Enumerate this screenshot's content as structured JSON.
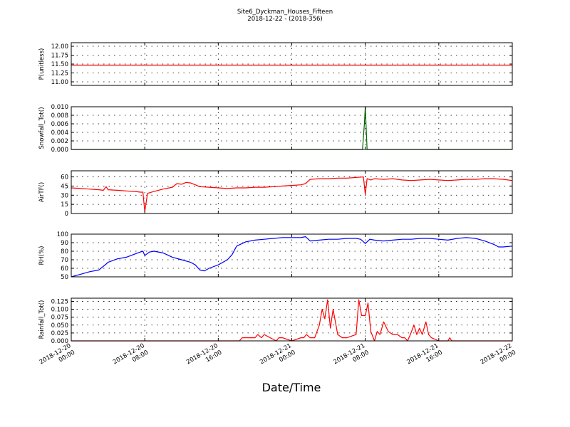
{
  "figure": {
    "title_line1": "Site6_Dyckman_Houses_Fifteen",
    "title_line2": "2018-12-22 - (2018-356)",
    "xlabel": "Date/Time"
  },
  "chart_data": [
    {
      "type": "line",
      "ylabel": "P(unitless)",
      "ylim": [
        10.9,
        12.1
      ],
      "yticks": [
        "11.00",
        "11.25",
        "11.50",
        "11.75",
        "12.00"
      ],
      "ytick_values": [
        11.0,
        11.25,
        11.5,
        11.75,
        12.0
      ],
      "xlim": [
        0,
        48
      ],
      "grid": true,
      "series": [
        {
          "color": "#ff0000",
          "x": [
            0,
            48
          ],
          "y": [
            11.47,
            11.47
          ]
        }
      ]
    },
    {
      "type": "line",
      "ylabel": "Snowfall_Tot()",
      "ylim": [
        0,
        0.01
      ],
      "yticks": [
        "0.000",
        "0.002",
        "0.004",
        "0.006",
        "0.008",
        "0.010"
      ],
      "ytick_values": [
        0,
        0.002,
        0.004,
        0.006,
        0.008,
        0.01
      ],
      "xlim": [
        0,
        48
      ],
      "grid": true,
      "series": [
        {
          "color": "#006400",
          "x": [
            0,
            31.7,
            31.9,
            32.0,
            32.2,
            48
          ],
          "y": [
            0,
            0,
            0.006,
            0.01,
            0,
            0
          ]
        }
      ]
    },
    {
      "type": "line",
      "ylabel": "AirTF()",
      "ylim": [
        0,
        70
      ],
      "yticks": [
        "0",
        "15",
        "30",
        "45",
        "60"
      ],
      "ytick_values": [
        0,
        15,
        30,
        45,
        60
      ],
      "xlim": [
        0,
        48
      ],
      "grid": true,
      "series": [
        {
          "color": "#ff0000",
          "x": [
            0,
            1,
            2,
            3,
            3.5,
            3.8,
            4,
            5,
            6,
            7,
            7.5,
            7.8,
            8,
            8.3,
            9,
            10,
            11,
            11.5,
            12,
            12.5,
            13,
            13.5,
            14,
            15,
            16,
            17,
            18,
            19,
            20,
            21,
            22,
            23,
            24,
            25,
            25.5,
            26,
            27,
            28,
            29,
            30,
            31,
            31.8,
            32,
            32.2,
            32.6,
            33,
            34,
            35,
            36,
            37,
            38,
            39,
            40,
            41,
            42,
            43,
            44,
            45,
            46,
            47,
            48
          ],
          "y": [
            42,
            41,
            40,
            39,
            38,
            44,
            39,
            38,
            37,
            36,
            35,
            35,
            3,
            33,
            36,
            40,
            43,
            49,
            48,
            51,
            50,
            47,
            44,
            43,
            42,
            41,
            42,
            42,
            43,
            43,
            44,
            45,
            46,
            47,
            49,
            56,
            57,
            57,
            58,
            58,
            59,
            60,
            31,
            57,
            55,
            57,
            56,
            57,
            55,
            54,
            55,
            56,
            55,
            54,
            55,
            56,
            56,
            57,
            57,
            56,
            54
          ]
        }
      ]
    },
    {
      "type": "line",
      "ylabel": "RH(%)",
      "ylim": [
        50,
        100
      ],
      "yticks": [
        "50",
        "60",
        "70",
        "80",
        "90",
        "100"
      ],
      "ytick_values": [
        50,
        60,
        70,
        80,
        90,
        100
      ],
      "xlim": [
        0,
        48
      ],
      "grid": true,
      "series": [
        {
          "color": "#0000ff",
          "x": [
            0,
            1,
            2,
            3,
            3.8,
            4,
            5,
            6,
            7,
            7.5,
            7.8,
            8,
            8.5,
            9,
            10,
            11,
            12,
            13,
            13.5,
            14,
            14.5,
            15,
            16,
            17,
            17.5,
            18,
            19,
            20,
            21,
            22,
            23,
            24,
            25,
            25.5,
            26,
            27,
            28,
            29,
            30,
            31,
            31.5,
            32,
            32.5,
            33,
            34,
            35,
            36,
            37,
            38,
            39,
            40,
            41,
            42,
            43,
            44,
            45,
            46,
            46.5,
            47,
            48
          ],
          "y": [
            50,
            53,
            56,
            58,
            65,
            67,
            71,
            73,
            77,
            79,
            80,
            75,
            79,
            80,
            78,
            73,
            70,
            67,
            64,
            58,
            57,
            60,
            64,
            70,
            76,
            86,
            91,
            93,
            94,
            95,
            96,
            96,
            96,
            97,
            92,
            93,
            94,
            94,
            95,
            95,
            94,
            89,
            94,
            93,
            92,
            93,
            94,
            94,
            95,
            95,
            94,
            93,
            95,
            96,
            95,
            92,
            88,
            85,
            85,
            86
          ]
        }
      ]
    },
    {
      "type": "line",
      "ylabel": "Rainfall_Tot()",
      "ylim": [
        0,
        0.135
      ],
      "yticks": [
        "0.000",
        "0.025",
        "0.050",
        "0.075",
        "0.100",
        "0.125"
      ],
      "ytick_values": [
        0,
        0.025,
        0.05,
        0.075,
        0.1,
        0.125
      ],
      "xlim": [
        0,
        48
      ],
      "grid": true,
      "series": [
        {
          "color": "#ff0000",
          "x": [
            0,
            18.3,
            18.6,
            19,
            20,
            20.3,
            20.7,
            21,
            22.3,
            22.6,
            22.8,
            23,
            24,
            25,
            25.3,
            25.6,
            26,
            26.5,
            27,
            27.3,
            27.6,
            27.9,
            28.2,
            28.5,
            29,
            29.5,
            30,
            31,
            31.3,
            31.6,
            32,
            32.3,
            32.6,
            33,
            33.3,
            33.6,
            34,
            34.5,
            35,
            35.5,
            36,
            36.3,
            36.6,
            36.9,
            37.3,
            37.6,
            37.9,
            38.2,
            38.6,
            38.9,
            39.2,
            40,
            41,
            41.2,
            41.4,
            41.6,
            48
          ],
          "y": [
            0,
            0,
            0.01,
            0.01,
            0.01,
            0.02,
            0.01,
            0.02,
            0.0,
            0.01,
            0.01,
            0.01,
            0.0,
            0.01,
            0.01,
            0.02,
            0.01,
            0.01,
            0.05,
            0.1,
            0.07,
            0.13,
            0.04,
            0.1,
            0.02,
            0.01,
            0.01,
            0.02,
            0.13,
            0.08,
            0.08,
            0.12,
            0.03,
            0.0,
            0.03,
            0.02,
            0.06,
            0.03,
            0.02,
            0.02,
            0.01,
            0.01,
            0.0,
            0.02,
            0.05,
            0.02,
            0.04,
            0.02,
            0.06,
            0.02,
            0.01,
            0.0,
            0.0,
            0.01,
            0.0,
            0.0,
            0.0
          ]
        }
      ]
    }
  ],
  "x_axis": {
    "ticks": [
      {
        "value": 0,
        "line1": "2018-12-20",
        "line2": "00:00"
      },
      {
        "value": 8,
        "line1": "2018-12-20",
        "line2": "08:00"
      },
      {
        "value": 16,
        "line1": "2018-12-20",
        "line2": "16:00"
      },
      {
        "value": 24,
        "line1": "2018-12-21",
        "line2": "00:00"
      },
      {
        "value": 32,
        "line1": "2018-12-21",
        "line2": "08:00"
      },
      {
        "value": 40,
        "line1": "2018-12-21",
        "line2": "16:00"
      },
      {
        "value": 48,
        "line1": "2018-12-22",
        "line2": "00:00"
      }
    ]
  }
}
